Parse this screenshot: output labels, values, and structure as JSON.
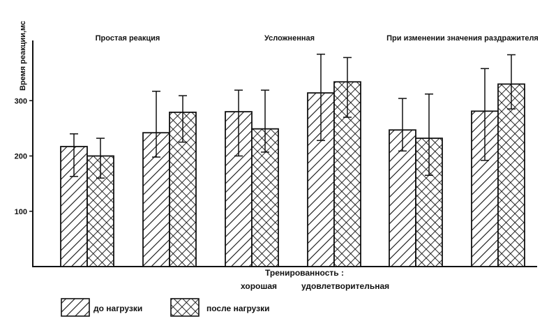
{
  "chart_data": {
    "type": "bar",
    "ylabel": "Время реакции,мс",
    "ylim": [
      0,
      400
    ],
    "yticks": [
      100,
      200,
      300
    ],
    "grid": false,
    "groups": [
      {
        "label": "Простая реакция",
        "bars": [
          {
            "training": "хорошая",
            "before": 217,
            "before_err": [
              163,
              240
            ],
            "after": 200,
            "after_err": [
              160,
              232
            ]
          },
          {
            "training": "удовлетворительная",
            "before": 242,
            "before_err": [
              198,
              317
            ],
            "after": 279,
            "after_err": [
              225,
              309
            ]
          }
        ]
      },
      {
        "label": "Усложненная",
        "bars": [
          {
            "training": "хорошая",
            "before": 280,
            "before_err": [
              200,
              319
            ],
            "after": 249,
            "after_err": [
              207,
              319
            ]
          },
          {
            "training": "удовлетворительная",
            "before": 314,
            "before_err": [
              228,
              384
            ],
            "after": 334,
            "after_err": [
              270,
              378
            ]
          }
        ]
      },
      {
        "label": "При изменении значения раздражителя",
        "bars": [
          {
            "training": "хорошая",
            "before": 247,
            "before_err": [
              209,
              304
            ],
            "after": 232,
            "after_err": [
              165,
              312
            ]
          },
          {
            "training": "удовлетворительная",
            "before": 281,
            "before_err": [
              192,
              358
            ],
            "after": 330,
            "after_err": [
              285,
              383
            ]
          }
        ]
      }
    ],
    "series": [
      {
        "name": "до нагрузки",
        "pattern": "hatch"
      },
      {
        "name": "после нагрузки",
        "pattern": "crosshatch"
      }
    ],
    "training_title": "Тренированность :",
    "training_levels": [
      "хорошая",
      "удовлетворительная"
    ],
    "legend_position": "bottom-left"
  }
}
